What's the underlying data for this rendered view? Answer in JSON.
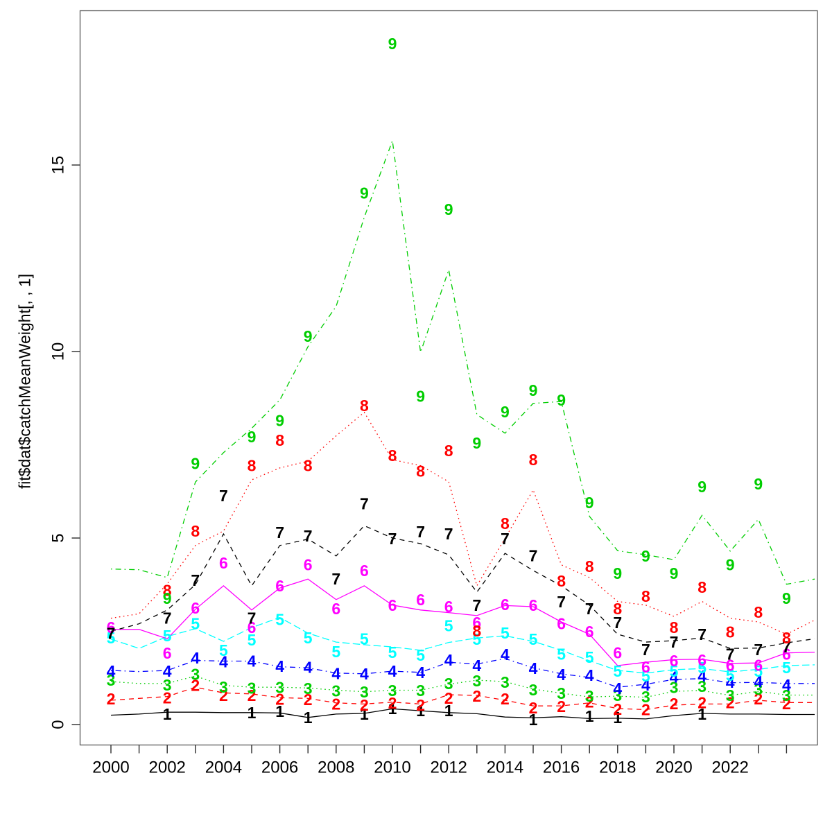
{
  "chart_data": {
    "type": "line",
    "title": "",
    "xlabel": "",
    "ylabel": "fit$dat$catchMeanWeight[, , 1]",
    "grid": false,
    "legend": "none",
    "xlim": [
      1998.9,
      2025.9
    ],
    "ylim": [
      -0.56,
      19.14
    ],
    "x_minor_tick_years": [
      2000,
      2001,
      2002,
      2003,
      2004,
      2005,
      2006,
      2007,
      2008,
      2009,
      2010,
      2011,
      2012,
      2013,
      2014,
      2015,
      2016,
      2017,
      2018,
      2019,
      2020,
      2021,
      2022,
      2023,
      2024
    ],
    "x_label_years": [
      2000,
      2002,
      2004,
      2006,
      2008,
      2010,
      2012,
      2014,
      2016,
      2018,
      2020,
      2022
    ],
    "x_label_texts": [
      "2000",
      "2002",
      "2004",
      "2006",
      "2008",
      "2010",
      "2012",
      "2014",
      "2016",
      "2018",
      "2020",
      "2022"
    ],
    "y_ticks": [
      0,
      5,
      10,
      15
    ],
    "y_tick_labels": [
      "0",
      "5",
      "10",
      "15"
    ],
    "years": [
      2000,
      2001,
      2002,
      2003,
      2004,
      2005,
      2006,
      2007,
      2008,
      2009,
      2010,
      2011,
      2012,
      2013,
      2014,
      2015,
      2016,
      2017,
      2018,
      2019,
      2020,
      2021,
      2022,
      2023,
      2024,
      2025
    ],
    "note": "Each series: 'line' = fitted line vertices for years 2000-2025 (2025 clipped at box edge); 'points' = plotted digit markers for 2000-2024, null where no digit is drawn (e.g. 2001 missing for all series).",
    "series": [
      {
        "label": "1",
        "color": "#000000",
        "linetype": "solid",
        "line": [
          0.25,
          0.28,
          0.33,
          0.33,
          0.32,
          0.32,
          0.31,
          0.19,
          0.28,
          0.3,
          0.42,
          0.37,
          0.32,
          0.29,
          0.2,
          0.18,
          0.21,
          0.16,
          0.17,
          0.15,
          0.24,
          0.3,
          0.28,
          0.28,
          0.27,
          0.27
        ],
        "points": [
          null,
          null,
          0.28,
          null,
          null,
          0.32,
          0.35,
          0.19,
          null,
          0.28,
          0.43,
          0.37,
          0.37,
          null,
          null,
          0.13,
          null,
          0.22,
          0.19,
          null,
          null,
          0.28,
          null,
          null,
          null
        ]
      },
      {
        "label": "2",
        "color": "#ff0000",
        "linetype": "dashed",
        "line": [
          0.65,
          0.7,
          0.75,
          1.0,
          0.85,
          0.82,
          0.72,
          0.7,
          0.58,
          0.55,
          0.6,
          0.55,
          0.8,
          0.78,
          0.65,
          0.5,
          0.5,
          0.58,
          0.43,
          0.4,
          0.52,
          0.55,
          0.55,
          0.65,
          0.59,
          0.59
        ],
        "points": [
          0.69,
          null,
          0.72,
          1.05,
          0.78,
          0.78,
          0.68,
          0.67,
          0.55,
          0.52,
          0.58,
          0.52,
          0.71,
          0.76,
          0.69,
          0.45,
          0.48,
          0.6,
          0.41,
          0.4,
          0.56,
          0.59,
          0.59,
          0.69,
          0.56
        ]
      },
      {
        "label": "3",
        "color": "#00cd00",
        "linetype": "dotted",
        "line": [
          1.15,
          1.1,
          1.1,
          1.3,
          1.05,
          1.0,
          1.0,
          0.98,
          0.92,
          0.88,
          0.92,
          0.92,
          1.08,
          1.19,
          1.15,
          0.95,
          0.84,
          0.74,
          0.76,
          0.73,
          0.89,
          0.91,
          0.78,
          0.89,
          0.79,
          0.79
        ],
        "points": [
          1.19,
          null,
          1.06,
          1.35,
          1.0,
          0.98,
          0.99,
          0.97,
          0.9,
          0.87,
          0.91,
          0.91,
          1.1,
          1.17,
          1.13,
          0.93,
          0.84,
          0.76,
          0.78,
          0.74,
          0.99,
          1.02,
          0.78,
          0.95,
          0.78
        ]
      },
      {
        "label": "4",
        "color": "#0000ff",
        "linetype": "dotdash",
        "line": [
          1.45,
          1.42,
          1.45,
          1.72,
          1.7,
          1.7,
          1.55,
          1.52,
          1.38,
          1.36,
          1.43,
          1.4,
          1.67,
          1.62,
          1.77,
          1.52,
          1.36,
          1.26,
          1.0,
          1.08,
          1.21,
          1.23,
          1.12,
          1.13,
          1.1,
          1.1
        ],
        "points": [
          1.43,
          null,
          1.43,
          1.78,
          1.68,
          1.7,
          1.56,
          1.53,
          1.37,
          1.36,
          1.43,
          1.39,
          1.73,
          1.58,
          1.88,
          1.51,
          1.34,
          1.32,
          0.97,
          1.06,
          1.27,
          1.3,
          1.13,
          1.15,
          1.06
        ]
      },
      {
        "label": "5",
        "color": "#00ffff",
        "linetype": "longdash",
        "line": [
          2.29,
          2.04,
          2.36,
          2.57,
          2.23,
          2.6,
          2.87,
          2.45,
          2.21,
          2.14,
          2.08,
          1.99,
          2.2,
          2.32,
          2.38,
          2.23,
          1.99,
          1.71,
          1.45,
          1.38,
          1.47,
          1.5,
          1.41,
          1.48,
          1.58,
          1.6
        ],
        "points": [
          2.32,
          null,
          2.38,
          2.7,
          1.99,
          2.27,
          2.82,
          2.32,
          1.95,
          2.3,
          1.93,
          1.86,
          2.65,
          2.29,
          2.45,
          2.29,
          1.89,
          1.8,
          1.43,
          1.3,
          1.43,
          1.52,
          1.32,
          1.43,
          1.52
        ]
      },
      {
        "label": "6",
        "color": "#ff00ff",
        "linetype": "solid",
        "line": [
          2.55,
          2.55,
          2.3,
          3.09,
          3.72,
          3.07,
          3.66,
          3.9,
          3.35,
          3.72,
          3.2,
          3.07,
          3.0,
          2.92,
          3.19,
          3.16,
          2.75,
          2.42,
          1.58,
          1.67,
          1.74,
          1.75,
          1.64,
          1.65,
          1.92,
          1.94
        ],
        "points": [
          2.6,
          null,
          1.91,
          3.12,
          4.33,
          2.6,
          3.72,
          4.28,
          3.1,
          4.13,
          3.2,
          3.35,
          3.16,
          2.73,
          3.22,
          3.2,
          2.7,
          2.49,
          1.92,
          1.54,
          1.71,
          1.73,
          1.59,
          1.59,
          1.89
        ]
      },
      {
        "label": "7",
        "color": "#000000",
        "linetype": "dashed",
        "line": [
          2.5,
          2.7,
          3.07,
          3.75,
          5.11,
          3.72,
          4.8,
          4.97,
          4.52,
          5.33,
          5.0,
          4.85,
          4.55,
          3.55,
          4.59,
          4.13,
          3.72,
          3.2,
          2.42,
          2.21,
          2.25,
          2.32,
          2.04,
          2.05,
          2.19,
          2.3
        ],
        "points": [
          2.44,
          null,
          2.85,
          3.87,
          6.13,
          2.85,
          5.15,
          5.06,
          3.9,
          5.92,
          4.98,
          5.17,
          5.11,
          3.2,
          4.98,
          4.53,
          3.29,
          3.1,
          2.73,
          2.01,
          2.21,
          2.42,
          1.89,
          2.01,
          2.08
        ]
      },
      {
        "label": "8",
        "color": "#ff0000",
        "linetype": "dotted",
        "line": [
          2.85,
          2.97,
          3.77,
          4.8,
          5.19,
          6.56,
          6.88,
          7.06,
          7.74,
          8.37,
          7.1,
          6.94,
          6.51,
          3.72,
          4.99,
          6.29,
          4.28,
          3.94,
          3.3,
          3.2,
          2.9,
          3.3,
          2.85,
          2.75,
          2.42,
          2.8
        ],
        "points": [
          null,
          null,
          3.6,
          5.19,
          null,
          6.94,
          7.62,
          6.94,
          null,
          8.55,
          7.21,
          6.79,
          7.34,
          2.51,
          5.39,
          7.1,
          3.85,
          4.24,
          3.1,
          3.44,
          2.6,
          3.68,
          2.48,
          3.01,
          2.32
        ]
      },
      {
        "label": "9",
        "color": "#00cd00",
        "linetype": "dotdash",
        "line": [
          4.17,
          4.15,
          3.94,
          6.5,
          7.29,
          7.94,
          8.7,
          10.13,
          11.21,
          13.6,
          15.65,
          9.98,
          12.19,
          8.31,
          7.81,
          8.61,
          8.66,
          5.58,
          4.66,
          4.55,
          4.42,
          5.61,
          4.65,
          5.5,
          3.76,
          3.9
        ],
        "points": [
          null,
          null,
          3.38,
          7.0,
          null,
          7.71,
          8.15,
          10.41,
          null,
          14.25,
          18.25,
          8.8,
          13.81,
          7.55,
          8.38,
          8.96,
          8.7,
          5.95,
          4.05,
          4.52,
          4.05,
          6.38,
          4.28,
          6.45,
          3.38
        ]
      }
    ]
  }
}
